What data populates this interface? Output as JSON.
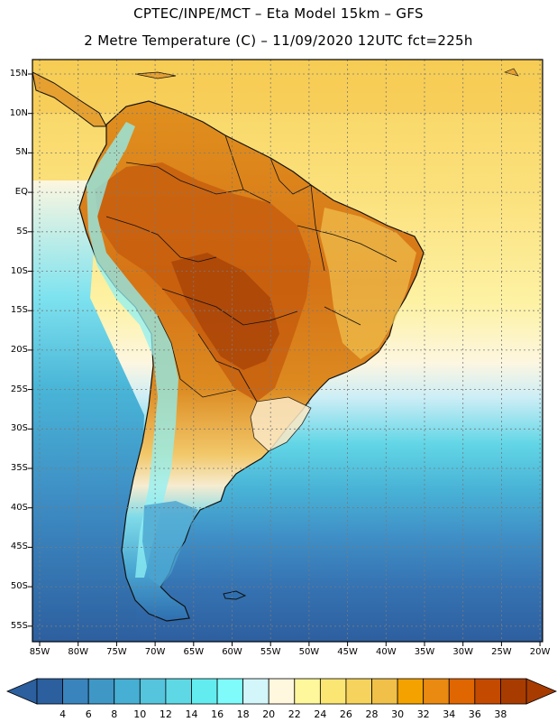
{
  "header": {
    "line1": "CPTEC/INPE/MCT –  Eta Model 15km – GFS",
    "line2": "2 Metre Temperature (C) – 11/09/2020 12UTC fct=225h"
  },
  "axes": {
    "lat_labels": [
      "15N",
      "10N",
      "5N",
      "EQ",
      "5S",
      "10S",
      "15S",
      "20S",
      "25S",
      "30S",
      "35S",
      "40S",
      "45S",
      "50S",
      "55S"
    ],
    "lon_labels": [
      "85W",
      "80W",
      "75W",
      "70W",
      "65W",
      "60W",
      "55W",
      "50W",
      "45W",
      "40W",
      "35W",
      "30W",
      "25W",
      "20W"
    ]
  },
  "colorbar": {
    "values": [
      "4",
      "6",
      "8",
      "10",
      "12",
      "14",
      "16",
      "18",
      "20",
      "22",
      "24",
      "26",
      "28",
      "30",
      "32",
      "34",
      "36",
      "38"
    ],
    "colors": [
      "#2b5f9e",
      "#3a84be",
      "#3f97c6",
      "#46afd3",
      "#55c4dd",
      "#5fd8e6",
      "#63ecf0",
      "#7ffbfb",
      "#d2f6fa",
      "#fff7de",
      "#fff79b",
      "#fbe673",
      "#f6d35d",
      "#f0c048",
      "#f3a200",
      "#eb8a10",
      "#df6600",
      "#c44a00",
      "#a83c00"
    ]
  },
  "map": {
    "ocean_north_color": "#fbe48a",
    "ocean_south_color": "#2d63a6",
    "land_hot_color": "#d86a1c",
    "land_core_color": "#b94a06"
  }
}
